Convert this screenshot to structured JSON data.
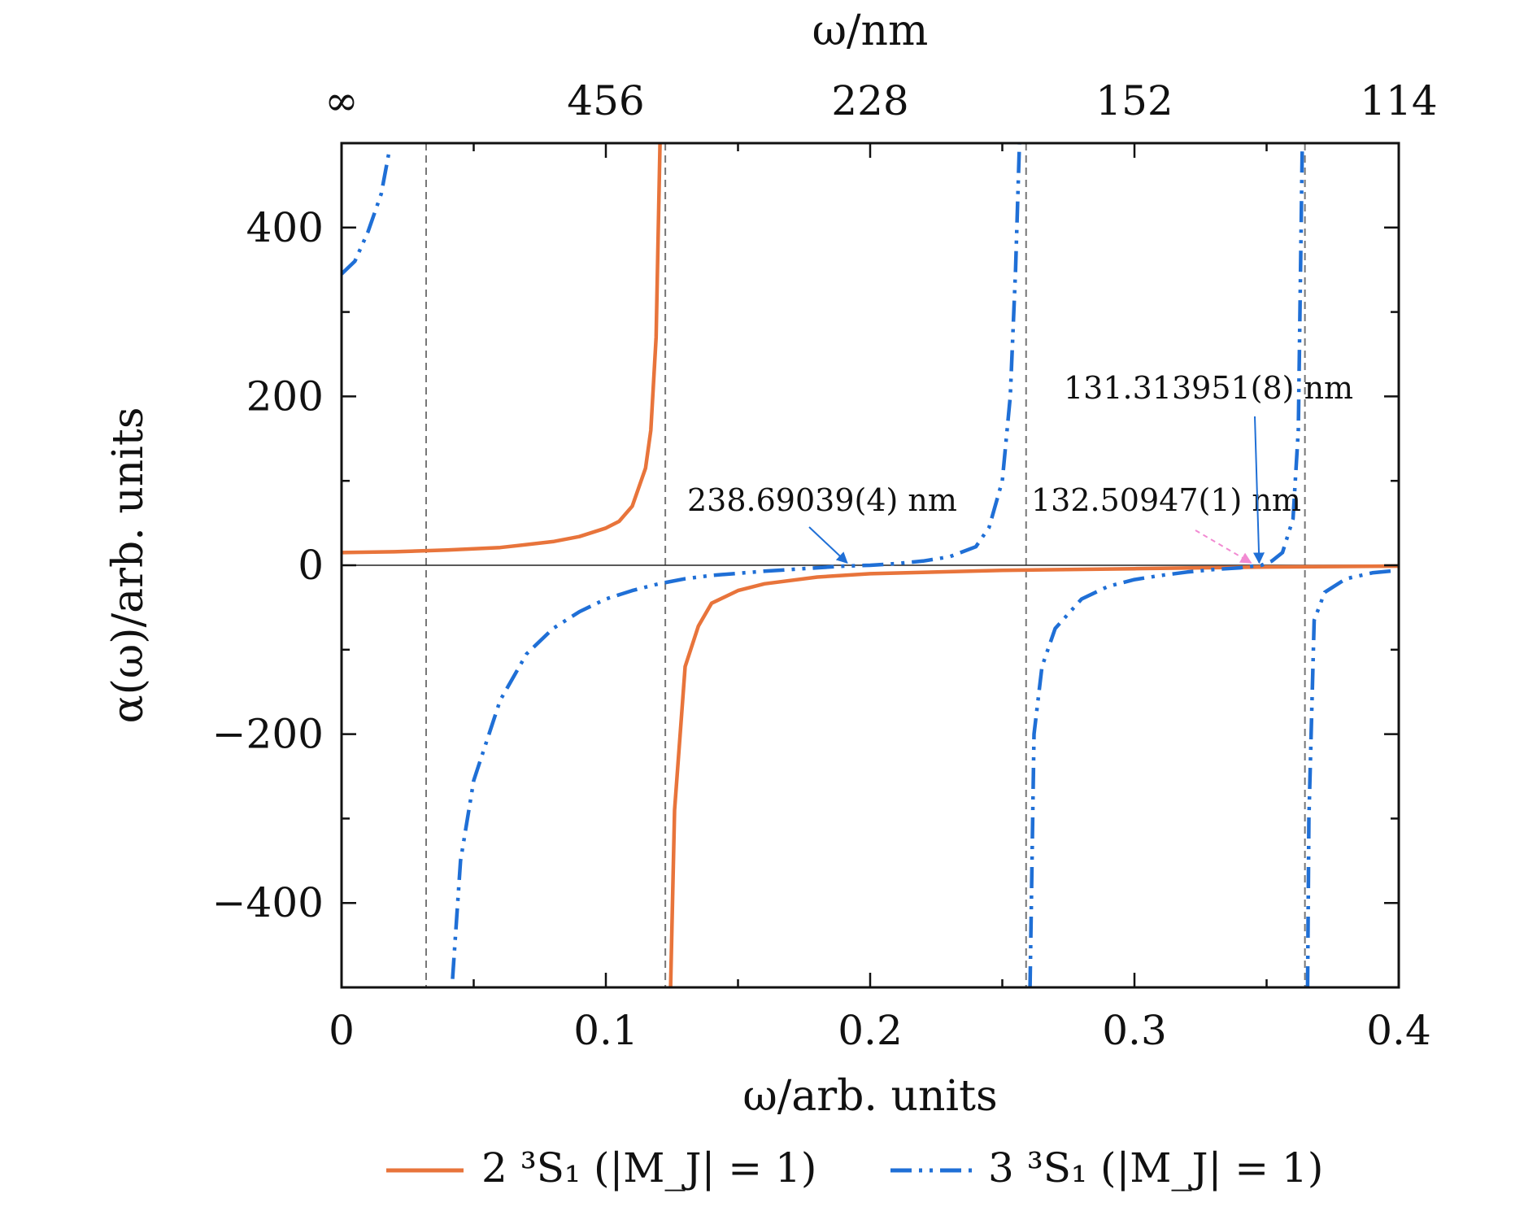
{
  "chart_data": {
    "type": "line",
    "title": "",
    "xlabel": "ω/arb. units",
    "ylabel": "α(ω)/arb. units",
    "top_xlabel": "ω/nm",
    "xlim": [
      0,
      0.4
    ],
    "ylim": [
      -500,
      500
    ],
    "x_ticks": [
      {
        "value": 0,
        "label": "0"
      },
      {
        "value": 0.1,
        "label": "0.1"
      },
      {
        "value": 0.2,
        "label": "0.2"
      },
      {
        "value": 0.3,
        "label": "0.3"
      },
      {
        "value": 0.4,
        "label": "0.4"
      }
    ],
    "y_ticks": [
      {
        "value": -400,
        "label": "−400"
      },
      {
        "value": -200,
        "label": "−200"
      },
      {
        "value": 0,
        "label": "0"
      },
      {
        "value": 200,
        "label": "200"
      },
      {
        "value": 400,
        "label": "400"
      }
    ],
    "top_ticks": [
      {
        "value": 0,
        "label": "∞"
      },
      {
        "value": 0.1,
        "label": "456"
      },
      {
        "value": 0.2,
        "label": "228"
      },
      {
        "value": 0.3,
        "label": "152"
      },
      {
        "value": 0.4,
        "label": "114"
      }
    ],
    "grid": false,
    "legend_position": "bottom",
    "vertical_reference_lines": [
      0.032,
      0.1225,
      0.259,
      0.3645
    ],
    "series": [
      {
        "name": "2 ³S₁ (|M_J| = 1)",
        "color": "#e8743b",
        "style": "solid",
        "segments": [
          [
            [
              0,
              15
            ],
            [
              0.02,
              16
            ],
            [
              0.04,
              18
            ],
            [
              0.06,
              21
            ],
            [
              0.08,
              28
            ],
            [
              0.09,
              34
            ],
            [
              0.1,
              44
            ],
            [
              0.105,
              52
            ],
            [
              0.11,
              70
            ],
            [
              0.115,
              115
            ],
            [
              0.117,
              160
            ],
            [
              0.119,
              270
            ],
            [
              0.1205,
              500
            ]
          ],
          [
            [
              0.1245,
              -500
            ],
            [
              0.126,
              -290
            ],
            [
              0.13,
              -120
            ],
            [
              0.135,
              -72
            ],
            [
              0.14,
              -45
            ],
            [
              0.15,
              -30
            ],
            [
              0.16,
              -22
            ],
            [
              0.18,
              -14
            ],
            [
              0.2,
              -10
            ],
            [
              0.25,
              -6
            ],
            [
              0.3,
              -4
            ],
            [
              0.35,
              -2
            ],
            [
              0.4,
              -1
            ]
          ]
        ]
      },
      {
        "name": "3 ³S₁ (|M_J| = 1)",
        "color": "#1f6fd6",
        "style": "dash-dot-dot",
        "segments": [
          [
            [
              0,
              345
            ],
            [
              0.005,
              360
            ],
            [
              0.01,
              395
            ],
            [
              0.015,
              440
            ],
            [
              0.018,
              490
            ]
          ],
          [
            [
              0.042,
              -490
            ],
            [
              0.045,
              -350
            ],
            [
              0.05,
              -255
            ],
            [
              0.06,
              -160
            ],
            [
              0.07,
              -105
            ],
            [
              0.08,
              -75
            ],
            [
              0.09,
              -55
            ],
            [
              0.1,
              -40
            ],
            [
              0.11,
              -30
            ],
            [
              0.12,
              -22
            ],
            [
              0.13,
              -16
            ],
            [
              0.14,
              -12
            ],
            [
              0.16,
              -7
            ],
            [
              0.18,
              -3
            ],
            [
              0.19,
              -1
            ],
            [
              0.2,
              0
            ],
            [
              0.21,
              2
            ],
            [
              0.22,
              5
            ],
            [
              0.23,
              10
            ],
            [
              0.24,
              22
            ],
            [
              0.245,
              45
            ],
            [
              0.25,
              100
            ],
            [
              0.253,
              200
            ],
            [
              0.255,
              350
            ],
            [
              0.2565,
              500
            ]
          ],
          [
            [
              0.2605,
              -500
            ],
            [
              0.262,
              -200
            ],
            [
              0.265,
              -120
            ],
            [
              0.27,
              -75
            ],
            [
              0.28,
              -40
            ],
            [
              0.29,
              -25
            ],
            [
              0.3,
              -17
            ],
            [
              0.31,
              -12
            ],
            [
              0.32,
              -8
            ],
            [
              0.33,
              -5
            ],
            [
              0.34,
              -3
            ],
            [
              0.345,
              -1
            ],
            [
              0.348,
              0
            ],
            [
              0.352,
              5
            ],
            [
              0.356,
              15
            ],
            [
              0.36,
              55
            ],
            [
              0.362,
              160
            ],
            [
              0.3635,
              500
            ]
          ],
          [
            [
              0.3655,
              -500
            ],
            [
              0.366,
              -300
            ],
            [
              0.368,
              -65
            ],
            [
              0.372,
              -32
            ],
            [
              0.38,
              -16
            ],
            [
              0.39,
              -9
            ],
            [
              0.4,
              -6
            ]
          ]
        ]
      }
    ],
    "annotations": [
      {
        "text": "238.69039(4) nm",
        "color": "#1f6fd6",
        "point": {
          "x": 0.1913,
          "y": 0
        }
      },
      {
        "text": "132.50947(1) nm",
        "color": "#f28ad2",
        "point": {
          "x": 0.3441,
          "y": 0
        }
      },
      {
        "text": "131.313951(8) nm",
        "color": "#1f6fd6",
        "point": {
          "x": 0.3472,
          "y": 0
        }
      }
    ]
  }
}
